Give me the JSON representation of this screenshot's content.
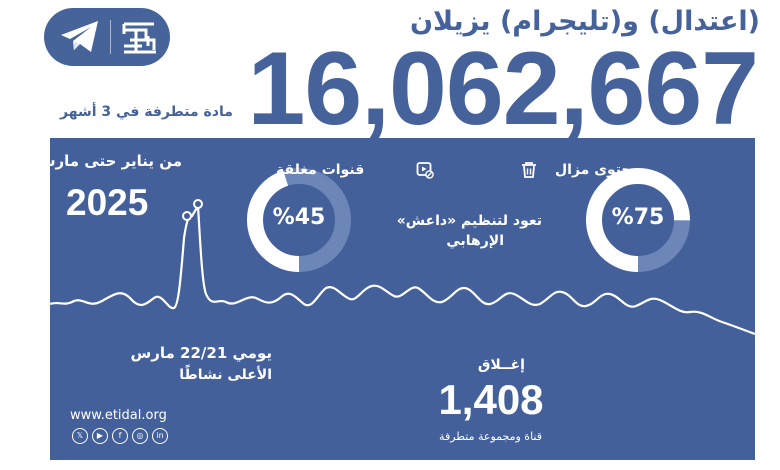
{
  "header": {
    "title": "(اعتدال) و(تليجرام) يزيلان",
    "big_number": "16,062,667",
    "caption": "مادة متطرفة في 3 أشهر",
    "logo_icons": [
      "telegram-icon",
      "etidal-logo-icon"
    ]
  },
  "panel": {
    "range_label": "من يناير حتى مارس",
    "year": "2025",
    "peak": {
      "date_line": "يومي 22/21 مارس",
      "sub_line": "الأعلى نشاطًا"
    },
    "website": "www.etidal.org",
    "social_icons": [
      "x-icon",
      "youtube-icon",
      "facebook-icon",
      "instagram-icon",
      "linkedin-icon"
    ],
    "closed_channels": {
      "label": "قنوات مغلقة",
      "value": "%45",
      "percent": 45,
      "icon": "closed-channel-icon"
    },
    "removed_content": {
      "label": "محتوى مزال",
      "value": "%75",
      "percent": 75,
      "icon": "trash-icon"
    },
    "isis_text_line1": "تعود لتنظيم «داعش»",
    "isis_text_line2": "الإرهابي",
    "closures": {
      "label": "إغــلاق",
      "count": "1,408",
      "sub": "قناة ومجموعة متطرفة"
    }
  },
  "colors": {
    "brand_blue": "#46629a",
    "panel_blue": "#44609b",
    "white": "#ffffff",
    "track_blue": "#6d86b8"
  }
}
